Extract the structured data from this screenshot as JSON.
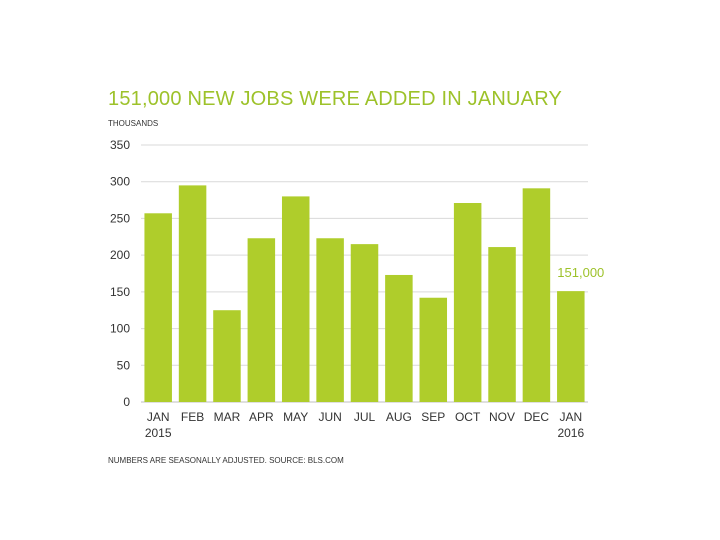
{
  "colors": {
    "bar": "#afcd2b",
    "title": "#9dc22a",
    "grid": "#d9d9d9",
    "text": "#333333"
  },
  "chart_data": {
    "type": "bar",
    "title": "151,000 NEW JOBS WERE ADDED IN JANUARY",
    "ylabel": "THOUSANDS",
    "footnote": "NUMBERS ARE SEASONALLY ADJUSTED. SOURCE: BLS.COM",
    "categories": [
      "JAN",
      "FEB",
      "MAR",
      "APR",
      "MAY",
      "JUN",
      "JUL",
      "AUG",
      "SEP",
      "OCT",
      "NOV",
      "DEC",
      "JAN"
    ],
    "year_labels": [
      "2015",
      "",
      "",
      "",
      "",
      "",
      "",
      "",
      "",
      "",
      "",
      "",
      "2016"
    ],
    "values": [
      257,
      295,
      125,
      223,
      280,
      223,
      215,
      173,
      142,
      271,
      211,
      291,
      151
    ],
    "ylim": [
      0,
      350
    ],
    "yticks": [
      0,
      50,
      100,
      150,
      200,
      250,
      300,
      350
    ],
    "grid": true,
    "annotations": [
      {
        "category_index": 12,
        "text": "151,000"
      }
    ]
  }
}
